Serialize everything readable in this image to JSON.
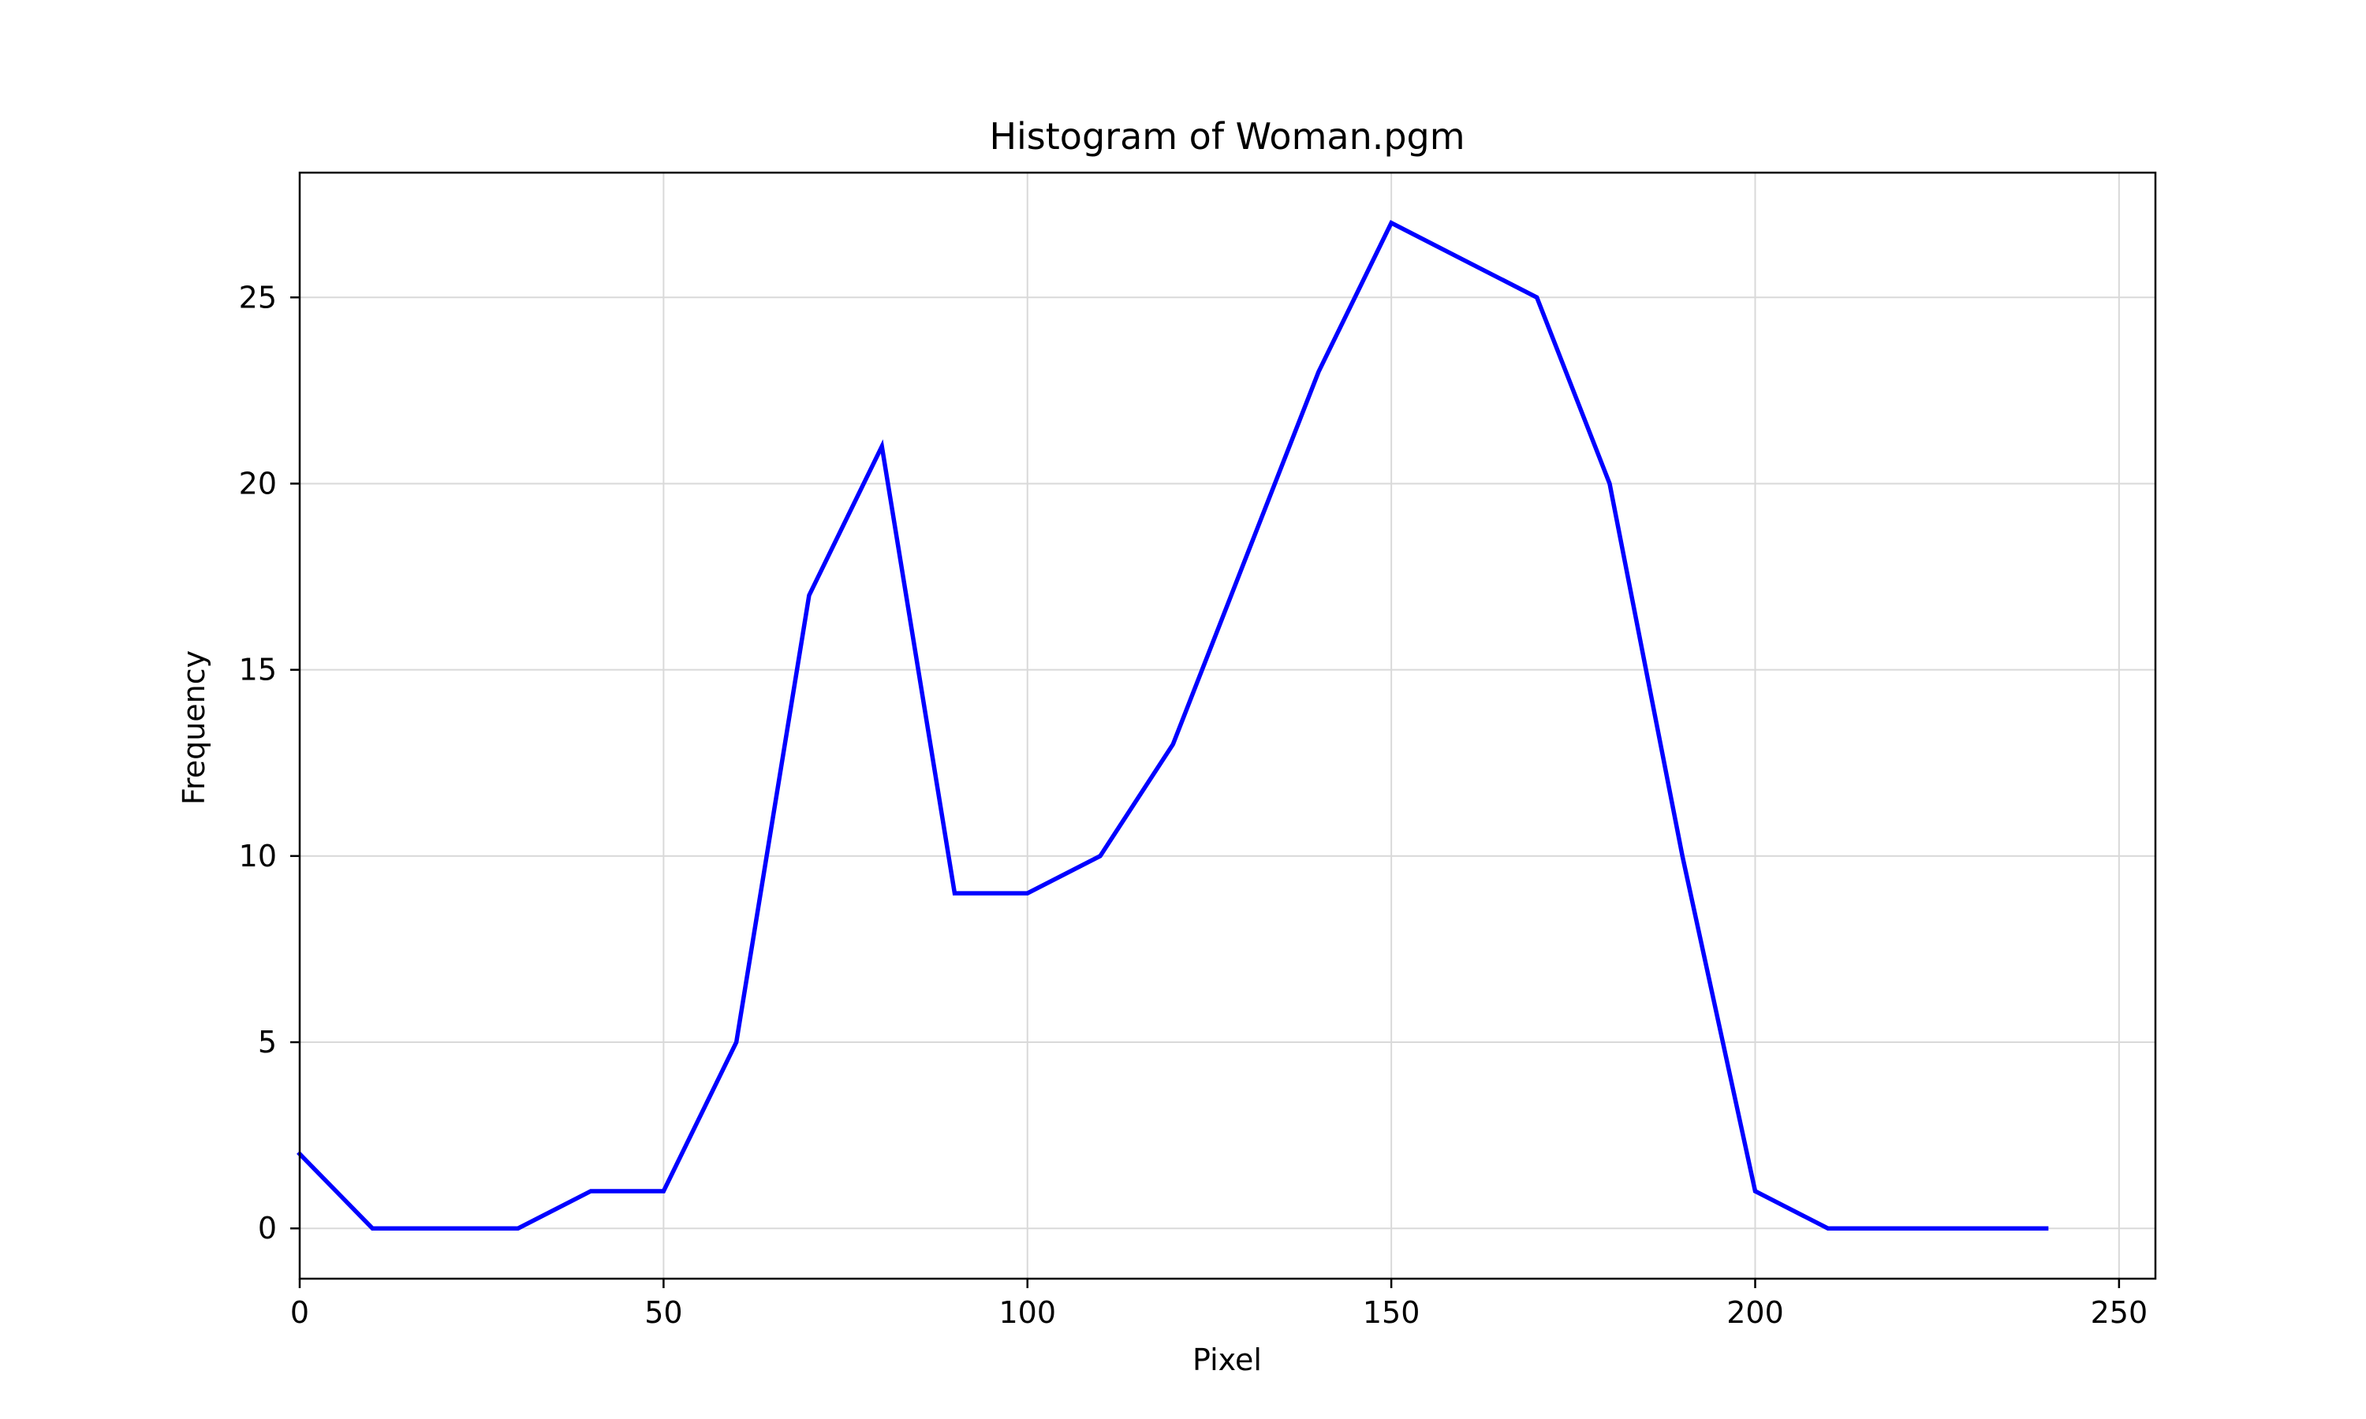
{
  "chart_data": {
    "type": "line",
    "title": "Histogram of Woman.pgm",
    "xlabel": "Pixel",
    "ylabel": "Frequency",
    "xlim": [
      0,
      255
    ],
    "ylim": [
      -1.35,
      28.35
    ],
    "xticks": [
      0,
      50,
      100,
      150,
      200,
      250
    ],
    "yticks": [
      0,
      5,
      10,
      15,
      20,
      25
    ],
    "grid": true,
    "legend": "none",
    "series": [
      {
        "color": "#0000ff",
        "x": [
          0,
          10,
          20,
          30,
          40,
          50,
          60,
          70,
          80,
          90,
          100,
          110,
          120,
          130,
          140,
          150,
          160,
          170,
          180,
          190,
          200,
          210,
          220,
          230,
          240
        ],
        "y": [
          2,
          0,
          0,
          0,
          1,
          1,
          5,
          17,
          21,
          9,
          9,
          10,
          13,
          18,
          23,
          27,
          26,
          25,
          20,
          10,
          1,
          0,
          0,
          0,
          0
        ]
      }
    ]
  }
}
